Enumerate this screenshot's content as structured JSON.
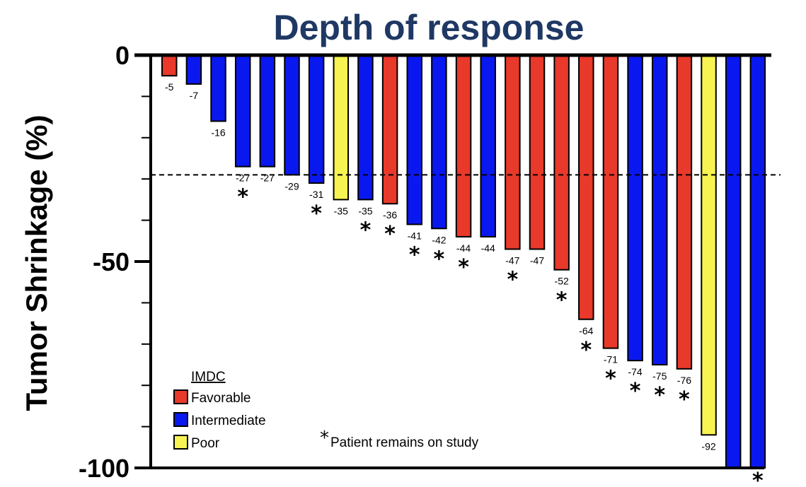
{
  "chart_data": {
    "type": "bar",
    "title": "Depth of response",
    "ylabel": "Tumor Shrinkage (%)",
    "xlabel": "",
    "ylim": [
      -100,
      0
    ],
    "yticks": [
      0,
      -50,
      -100
    ],
    "ytick_labels": [
      "0",
      "-50",
      "-100"
    ],
    "reference_line": -29,
    "values": [
      -5,
      -7,
      -16,
      -27,
      -27,
      -29,
      -31,
      -35,
      -35,
      -36,
      -41,
      -42,
      -44,
      -44,
      -47,
      -47,
      -52,
      -64,
      -71,
      -74,
      -75,
      -76,
      -92,
      -100,
      -100
    ],
    "labels": [
      "-5",
      "-7",
      "-16",
      "-27",
      "-27",
      "-29",
      "-31",
      "-35",
      "-35",
      "-36",
      "-41",
      "-42",
      "-44",
      "-44",
      "-47",
      "-47",
      "-52",
      "-64",
      "-71",
      "-74",
      "-75",
      "-76",
      "-92",
      "",
      ""
    ],
    "groups": [
      "Favorable",
      "Intermediate",
      "Intermediate",
      "Intermediate",
      "Intermediate",
      "Intermediate",
      "Intermediate",
      "Poor",
      "Intermediate",
      "Favorable",
      "Intermediate",
      "Intermediate",
      "Favorable",
      "Intermediate",
      "Favorable",
      "Favorable",
      "Favorable",
      "Favorable",
      "Favorable",
      "Intermediate",
      "Intermediate",
      "Favorable",
      "Poor",
      "Intermediate",
      "Intermediate"
    ],
    "on_study": [
      false,
      false,
      false,
      true,
      false,
      false,
      true,
      false,
      true,
      true,
      true,
      true,
      true,
      false,
      true,
      false,
      true,
      true,
      true,
      true,
      true,
      true,
      false,
      false,
      true
    ],
    "legend": {
      "title": "IMDC",
      "entries": [
        {
          "name": "Favorable",
          "color": "#e8392a"
        },
        {
          "name": "Intermediate",
          "color": "#0a18f0"
        },
        {
          "name": "Poor",
          "color": "#f7f352"
        }
      ],
      "placement": "bottom-left"
    },
    "annotation": {
      "marker": "*",
      "text": "Patient remains on study"
    },
    "colors": {
      "Favorable": "#e8392a",
      "Intermediate": "#0a18f0",
      "Poor": "#f7f352"
    }
  }
}
